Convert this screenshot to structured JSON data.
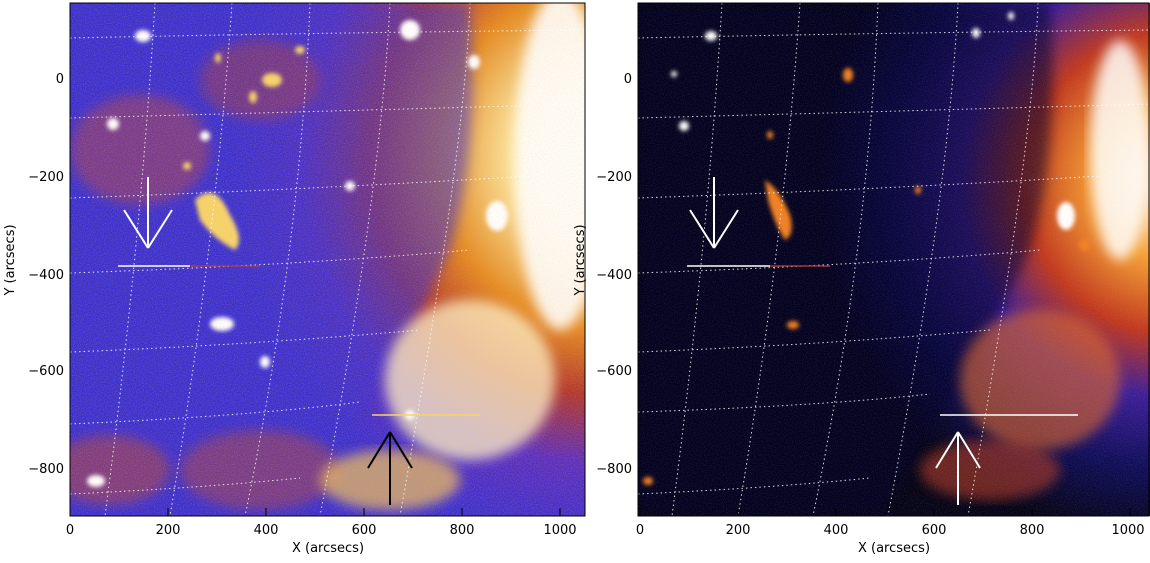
{
  "panels": [
    {
      "id": "left",
      "x_label": "X (arcsecs)",
      "y_label": "Y (arcsecs)",
      "x_ticks": [
        "0",
        "200",
        "400",
        "600",
        "800",
        "1000"
      ],
      "y_ticks": [
        "0",
        "−200",
        "−400",
        "−600",
        "−800"
      ],
      "x_range": [
        0,
        1050
      ],
      "y_range": [
        -900,
        150
      ],
      "colormap": [
        "#1a0a6e",
        "#3b2fd0",
        "#6b2fb0",
        "#c0322c",
        "#e07a1a",
        "#f7d36a",
        "#ffffff"
      ],
      "arrow_colors": [
        "white",
        "black"
      ]
    },
    {
      "id": "right",
      "x_label": "X (arcsecs)",
      "y_label": "Y (arcsecs)",
      "x_ticks": [
        "0",
        "200",
        "400",
        "600",
        "800",
        "1000"
      ],
      "y_ticks": [
        "0",
        "−200",
        "−400",
        "−600",
        "−800"
      ],
      "x_range": [
        0,
        1050
      ],
      "y_range": [
        -900,
        150
      ],
      "colormap": [
        "#000000",
        "#0a0a4a",
        "#1c1cb0",
        "#6a2aa0",
        "#c03020",
        "#f08020",
        "#ffffff"
      ],
      "arrow_colors": [
        "white",
        "white"
      ]
    }
  ]
}
